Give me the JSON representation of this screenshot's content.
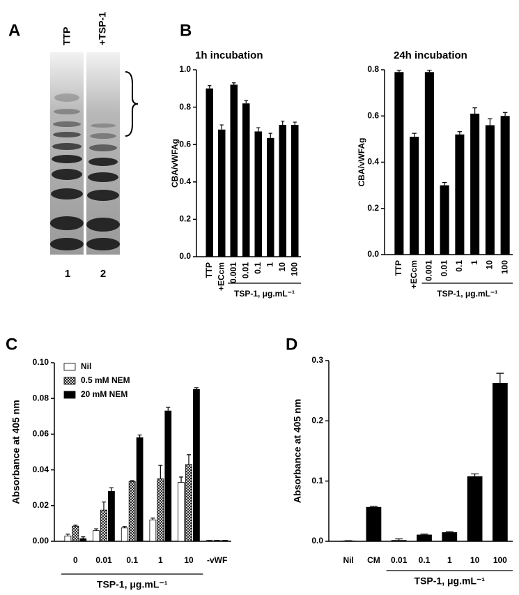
{
  "panel_labels": [
    "A",
    "B",
    "C",
    "D"
  ],
  "gel": {
    "lane_titles": [
      "TTP",
      "+TSP-1"
    ],
    "lane_numbers": [
      "1",
      "2"
    ]
  },
  "chart_data": [
    {
      "type": "bar",
      "title": "1h  incubation",
      "y_label": "CBA/vWFAg",
      "categories": [
        "TTP",
        "+ECcm",
        "0.001",
        "0.01",
        "0.1",
        "1",
        "10",
        "100"
      ],
      "values": [
        0.9,
        0.68,
        0.92,
        0.82,
        0.67,
        0.635,
        0.705,
        0.705
      ],
      "errors": [
        0.015,
        0.025,
        0.01,
        0.015,
        0.02,
        0.025,
        0.02,
        0.015
      ],
      "color": "#000000",
      "group": {
        "label": "TSP-1, μg.mL⁻¹",
        "start": 2,
        "end": 7
      },
      "ylim": [
        0,
        1.0
      ],
      "yticks": [
        {
          "value": 0,
          "label": "0.0"
        },
        0.2,
        0.4,
        0.6,
        0.8,
        {
          "value": 1.0,
          "label": "1.0"
        }
      ]
    },
    {
      "type": "bar",
      "title": "24h  incubation",
      "y_label": "CBA/vWFAg",
      "categories": [
        "TTP",
        "+ECcm",
        "0.001",
        "0.01",
        "0.1",
        "1",
        "10",
        "100"
      ],
      "values": [
        0.79,
        0.51,
        0.79,
        0.3,
        0.52,
        0.61,
        0.56,
        0.6
      ],
      "errors": [
        0.008,
        0.015,
        0.008,
        0.012,
        0.012,
        0.025,
        0.028,
        0.015
      ],
      "color": "#000000",
      "group": {
        "label": "TSP-1, μg.mL⁻¹",
        "start": 2,
        "end": 7
      },
      "ylim": [
        0,
        0.8
      ],
      "yticks": [
        {
          "value": 0,
          "label": "0.0"
        },
        0.2,
        0.4,
        0.6,
        0.8
      ]
    },
    {
      "type": "bar",
      "y_label": "Absorbance at 405 nm",
      "categories": [
        "0",
        "0.01",
        "0.1",
        "1",
        "10",
        "-vWF"
      ],
      "series": [
        {
          "name": "Nil",
          "color": "#ffffff",
          "values": [
            0.003,
            0.006,
            0.0075,
            0.012,
            0.033,
            0.0005
          ],
          "errors": [
            0.001,
            0.001,
            0.0008,
            0.001,
            0.003,
            0
          ]
        },
        {
          "name": "0.5 mM NEM",
          "color": "#888888",
          "hatch": true,
          "values": [
            0.0085,
            0.0175,
            0.0335,
            0.035,
            0.043,
            0.0005
          ],
          "errors": [
            0.0005,
            0.0045,
            0.0005,
            0.0075,
            0.0055,
            0
          ]
        },
        {
          "name": "20 mM NEM",
          "color": "#000000",
          "values": [
            0.0015,
            0.028,
            0.058,
            0.073,
            0.085,
            0.0005
          ],
          "errors": [
            0.001,
            0.002,
            0.0015,
            0.002,
            0.001,
            0
          ]
        }
      ],
      "legend": "top-left",
      "group": {
        "label": "TSP-1, μg.mL⁻¹",
        "start": 0,
        "end": 4
      },
      "ylim": [
        0,
        0.1
      ],
      "yticks": [
        {
          "value": 0,
          "label": "0.00"
        },
        {
          "value": 0.02,
          "label": "0.02"
        },
        {
          "value": 0.04,
          "label": "0.04"
        },
        {
          "value": 0.06,
          "label": "0.06"
        },
        {
          "value": 0.08,
          "label": "0.08"
        },
        {
          "value": 0.1,
          "label": "0.10"
        }
      ]
    },
    {
      "type": "bar",
      "y_label": "Absorbance at 405 nm",
      "categories": [
        "Nil",
        "CM",
        "0.01",
        "0.1",
        "1",
        "10",
        "100"
      ],
      "values": [
        0.001,
        0.057,
        0.002,
        0.011,
        0.015,
        0.108,
        0.263
      ],
      "errors": [
        0,
        0.001,
        0.002,
        0.001,
        0.001,
        0.004,
        0.016
      ],
      "color": "#000000",
      "group": {
        "label": "TSP-1, μg.mL⁻¹",
        "start": 2,
        "end": 6
      },
      "ylim": [
        0,
        0.3
      ],
      "yticks": [
        {
          "value": 0,
          "label": "0.0"
        },
        0.1,
        0.2,
        0.3
      ]
    }
  ]
}
